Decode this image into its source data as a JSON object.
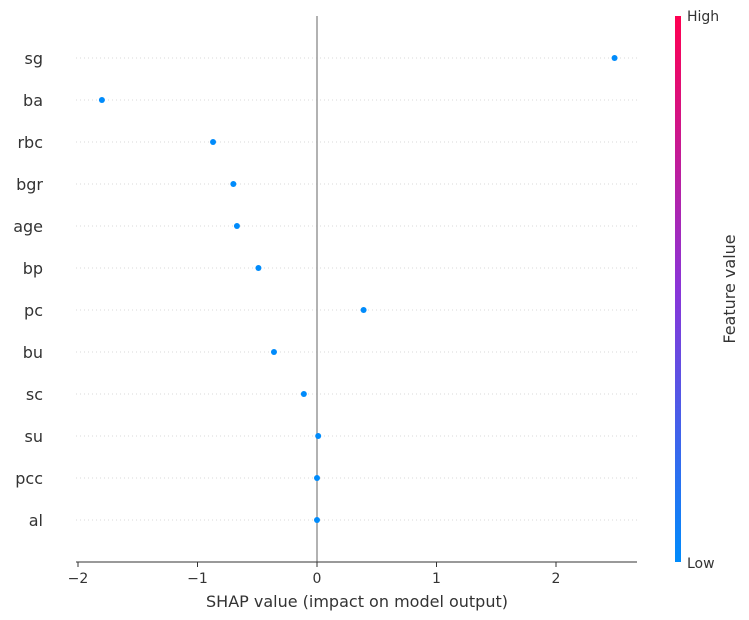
{
  "chart_data": {
    "type": "scatter",
    "title": "",
    "xlabel": "SHAP value (impact on model output)",
    "ylabel": "",
    "xlim": [
      -2.0,
      2.65
    ],
    "x_ticks": [
      "−2",
      "−1",
      "0",
      "1",
      "2"
    ],
    "x_tick_values": [
      -2,
      -1,
      0,
      1,
      2
    ],
    "grid": false,
    "features": [
      "sg",
      "ba",
      "rbc",
      "bgr",
      "age",
      "bp",
      "pc",
      "bu",
      "sc",
      "su",
      "pcc",
      "al"
    ],
    "shap_values": [
      2.49,
      -1.8,
      -0.87,
      -0.7,
      -0.67,
      -0.49,
      0.39,
      -0.36,
      -0.11,
      0.01,
      0.0,
      0.0
    ],
    "point_color": "#008bfb",
    "colorbar": {
      "label": "Feature value",
      "high_label": "High",
      "low_label": "Low",
      "high_color": "#ff0051",
      "low_color": "#008bfb"
    }
  }
}
